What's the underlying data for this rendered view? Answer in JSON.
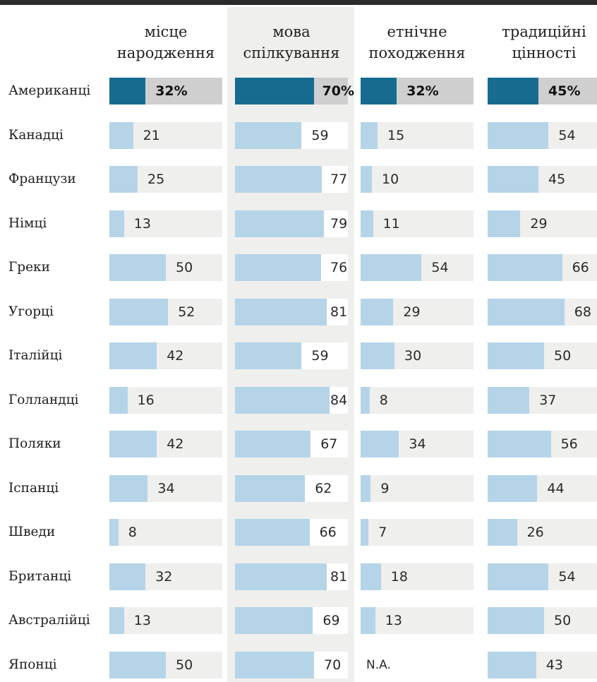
{
  "chart_data": {
    "type": "bar",
    "categories": [
      "Американці",
      "Канадці",
      "Французи",
      "Німці",
      "Греки",
      "Угорці",
      "Італійці",
      "Голландці",
      "Поляки",
      "Іспанці",
      "Шведи",
      "Британці",
      "Австралійці",
      "Японці"
    ],
    "series": [
      {
        "name": "місце\nнародження",
        "values": [
          32,
          21,
          25,
          13,
          50,
          52,
          42,
          16,
          42,
          34,
          8,
          32,
          13,
          50
        ]
      },
      {
        "name": "мова\nспілкування",
        "values": [
          70,
          59,
          77,
          79,
          76,
          81,
          59,
          84,
          67,
          62,
          66,
          81,
          69,
          70
        ]
      },
      {
        "name": "етнічне\nпоходження",
        "values": [
          32,
          15,
          10,
          11,
          54,
          29,
          30,
          8,
          34,
          9,
          7,
          18,
          13,
          null
        ]
      },
      {
        "name": "традиційні\nцінності",
        "values": [
          45,
          54,
          45,
          29,
          66,
          68,
          50,
          37,
          56,
          44,
          26,
          54,
          50,
          43
        ]
      }
    ],
    "missing_label": "N.A.",
    "highlight_category": "Американці",
    "highlight_series": "мова\nспілкування",
    "percent_suffix": "%",
    "ylim": [
      0,
      100
    ],
    "colors": {
      "bar": "#b5d4e8",
      "bar_highlight": "#176b8f",
      "track": "#efefed",
      "track_highlight": "#cfcfcf",
      "column_highlight": "#efefed"
    }
  }
}
